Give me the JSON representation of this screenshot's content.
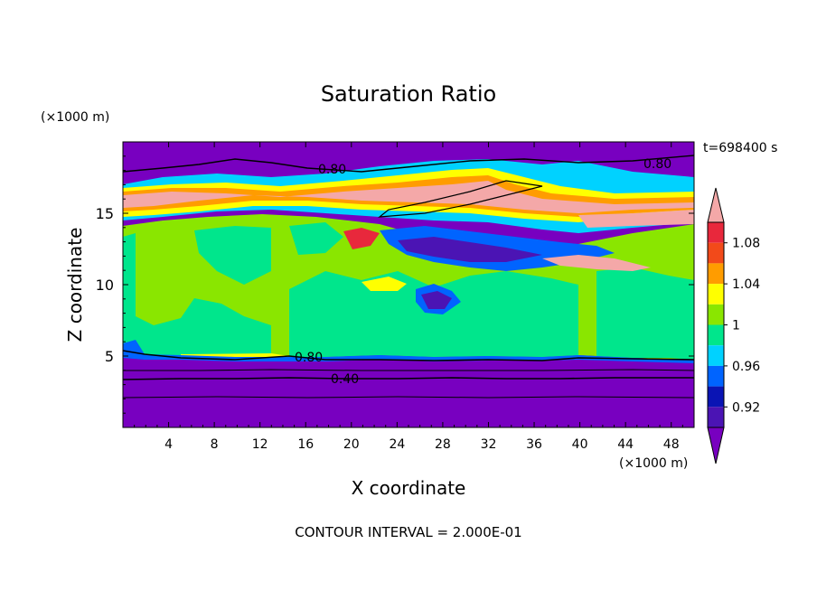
{
  "chart_data": {
    "type": "heatmap",
    "title": "Saturation Ratio",
    "xlabel": "X coordinate",
    "ylabel": "Z coordinate",
    "x_unit": "(×1000 m)",
    "y_unit": "(×1000 m)",
    "time_label": "t=698400  s",
    "footer": "CONTOUR INTERVAL = 2.000E-01",
    "xlim": [
      0,
      50
    ],
    "ylim": [
      0,
      20
    ],
    "x_ticks": [
      "4",
      "8",
      "12",
      "16",
      "20",
      "24",
      "28",
      "32",
      "36",
      "40",
      "44",
      "48"
    ],
    "x_tick_values": [
      4,
      8,
      12,
      16,
      20,
      24,
      28,
      32,
      36,
      40,
      44,
      48
    ],
    "y_ticks": [
      "5",
      "10",
      "15"
    ],
    "y_tick_values": [
      5,
      10,
      15
    ],
    "colorbar": {
      "labels": [
        "1.08",
        "1.04",
        "1",
        "0.96",
        "0.92"
      ],
      "label_values": [
        1.08,
        1.04,
        1.0,
        0.96,
        0.92
      ],
      "bins": [
        {
          "lo": 1.1,
          "hi": null,
          "color": "#f4a8a8"
        },
        {
          "lo": 1.08,
          "hi": 1.1,
          "color": "#e8283c"
        },
        {
          "lo": 1.06,
          "hi": 1.08,
          "color": "#f24a1a"
        },
        {
          "lo": 1.04,
          "hi": 1.06,
          "color": "#ff9c00"
        },
        {
          "lo": 1.02,
          "hi": 1.04,
          "color": "#ffff00"
        },
        {
          "lo": 1.0,
          "hi": 1.02,
          "color": "#8ae600"
        },
        {
          "lo": 0.98,
          "hi": 1.0,
          "color": "#00e68c"
        },
        {
          "lo": 0.96,
          "hi": 0.98,
          "color": "#00d2ff"
        },
        {
          "lo": 0.94,
          "hi": 0.96,
          "color": "#0064ff"
        },
        {
          "lo": 0.92,
          "hi": 0.94,
          "color": "#0a14b4"
        },
        {
          "lo": 0.9,
          "hi": 0.92,
          "color": "#4b14b4"
        },
        {
          "lo": null,
          "hi": 0.9,
          "color": "#7800c0"
        }
      ]
    },
    "contour_labels": [
      "0.80",
      "0.80",
      "0.80",
      "0.40"
    ]
  }
}
